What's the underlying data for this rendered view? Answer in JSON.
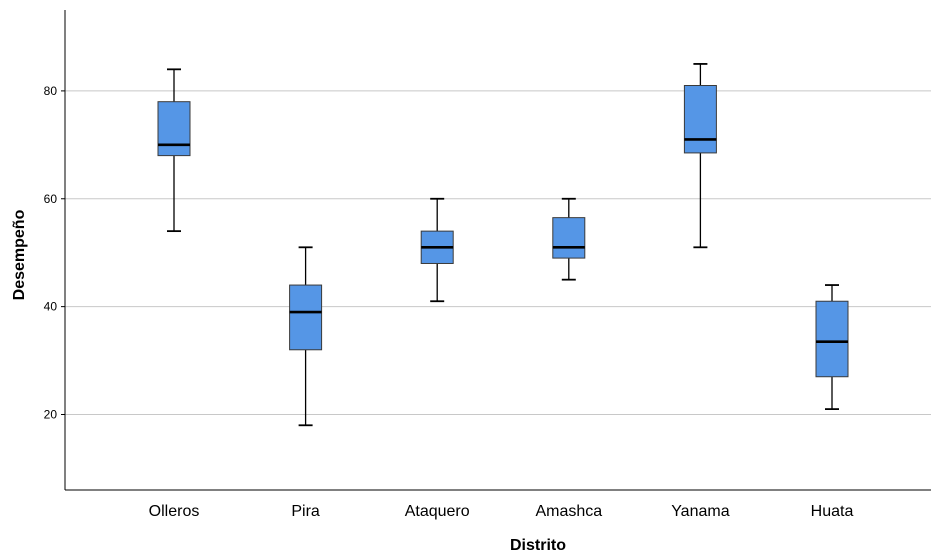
{
  "chart_data": {
    "type": "boxplot",
    "title": "",
    "xlabel": "Distrito",
    "ylabel": "Desempeño",
    "ylim": [
      6,
      95
    ],
    "yticks": [
      20,
      40,
      60,
      80
    ],
    "grid": true,
    "categories": [
      "Olleros",
      "Pira",
      "Ataquero",
      "Amashca",
      "Yanama",
      "Huata"
    ],
    "boxes": [
      {
        "category": "Olleros",
        "min": 54,
        "q1": 68,
        "median": 70,
        "q3": 78,
        "max": 84
      },
      {
        "category": "Pira",
        "min": 18,
        "q1": 32,
        "median": 39,
        "q3": 44,
        "max": 51
      },
      {
        "category": "Ataquero",
        "min": 41,
        "q1": 48,
        "median": 51,
        "q3": 54,
        "max": 60
      },
      {
        "category": "Amashca",
        "min": 45,
        "q1": 49,
        "median": 51,
        "q3": 56.5,
        "max": 60
      },
      {
        "category": "Yanama",
        "min": 51,
        "q1": 68.5,
        "median": 71,
        "q3": 81,
        "max": 85
      },
      {
        "category": "Huata",
        "min": 21,
        "q1": 27,
        "median": 33.5,
        "q3": 41,
        "max": 44
      }
    ],
    "colors": {
      "box_fill": "#5596e6",
      "box_stroke": "#3a3a3a",
      "whisker": "#000000",
      "grid": "#c8c8c8",
      "axis": "#000000"
    }
  }
}
